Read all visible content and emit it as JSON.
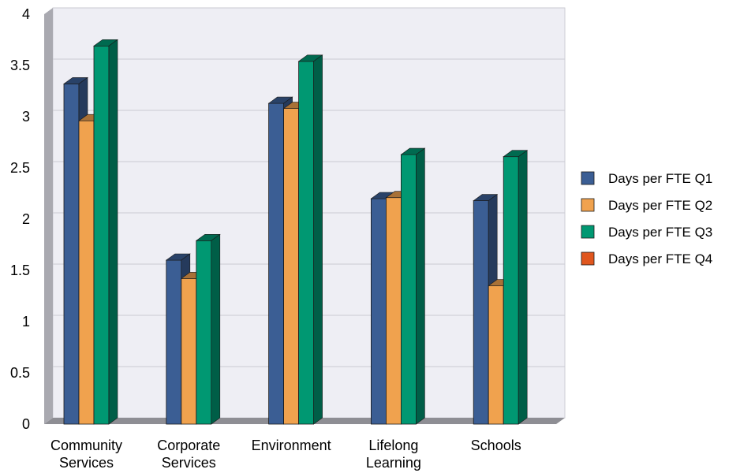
{
  "chart_data": {
    "type": "bar",
    "style": "3d-clustered-column",
    "categories": [
      "Community\nServices",
      "Corporate\nServices",
      "Environment",
      "Lifelong\nLearning",
      "Schools"
    ],
    "series": [
      {
        "name": "Days per FTE Q1",
        "color": "#3b5e94",
        "values": [
          3.32,
          1.6,
          3.13,
          2.2,
          2.18
        ]
      },
      {
        "name": "Days per FTE Q2",
        "color": "#f0a24e",
        "values": [
          2.96,
          1.42,
          3.08,
          2.21,
          1.35
        ]
      },
      {
        "name": "Days per FTE Q3",
        "color": "#009872",
        "values": [
          3.69,
          1.79,
          3.54,
          2.63,
          2.61
        ]
      },
      {
        "name": "Days per FTE Q4",
        "color": "#e0561e",
        "values": [
          null,
          null,
          null,
          null,
          null
        ]
      }
    ],
    "y_ticks": [
      "4",
      "3.5",
      "3",
      "2.5",
      "2",
      "1.5",
      "1",
      "0.5",
      "0"
    ],
    "ylim": [
      0,
      4
    ],
    "grid": true,
    "legend_position": "right"
  }
}
